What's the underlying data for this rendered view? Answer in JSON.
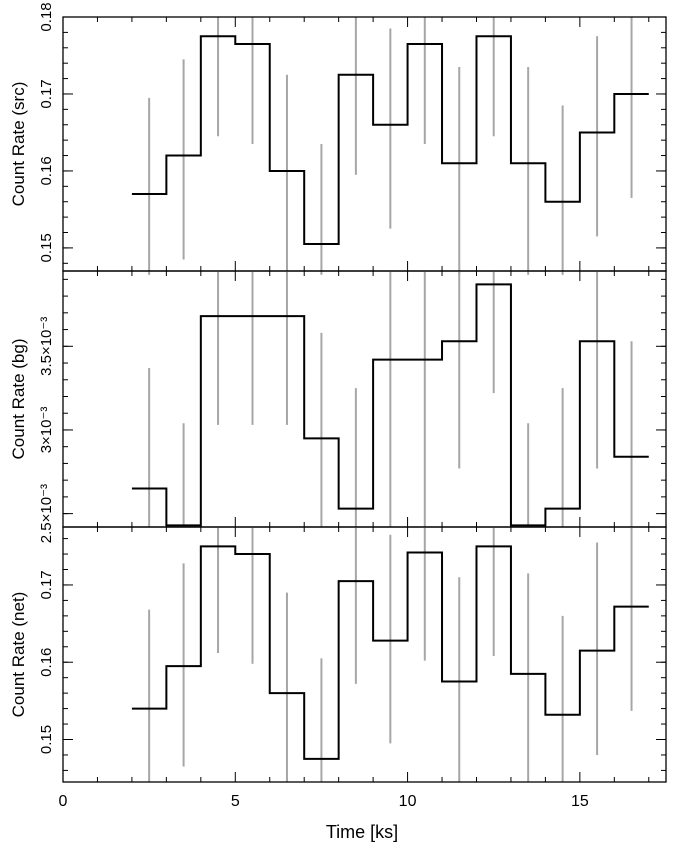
{
  "chart_data": {
    "type": "line",
    "xlabel": "Time [ks]",
    "xlim": [
      0,
      17.5
    ],
    "x_ticks": [
      0,
      5,
      10,
      15
    ],
    "x_tick_labels": [
      "0",
      "5",
      "10",
      "15"
    ],
    "bins": {
      "edges": [
        2,
        3,
        4,
        5,
        6,
        7,
        8,
        9,
        10,
        11,
        12,
        13,
        14,
        15,
        16,
        17
      ],
      "centers": [
        2.5,
        3.5,
        4.5,
        5.5,
        6.5,
        7.5,
        8.5,
        9.5,
        10.5,
        11.5,
        12.5,
        13.5,
        14.5,
        15.5,
        16.5
      ]
    },
    "panels": [
      {
        "name": "src",
        "ylabel": "Count Rate (src)",
        "ylim": [
          0.147,
          0.18
        ],
        "y_ticks": [
          0.15,
          0.16,
          0.17,
          0.18
        ],
        "y_tick_labels": [
          "0.15",
          "0.16",
          "0.17",
          "0.18"
        ],
        "values": [
          0.157,
          0.162,
          0.1775,
          0.1765,
          0.16,
          0.1505,
          0.1725,
          0.166,
          0.1765,
          0.161,
          0.1775,
          0.161,
          0.156,
          0.165,
          0.17
        ],
        "err_lo": [
          0.1465,
          0.1485,
          0.1645,
          0.1635,
          0.1465,
          0.1465,
          0.1595,
          0.1525,
          0.1635,
          0.1465,
          0.1645,
          0.1465,
          0.1465,
          0.1515,
          0.1565
        ],
        "err_hi": [
          0.1695,
          0.1745,
          0.18,
          0.18,
          0.1725,
          0.1635,
          0.18,
          0.1785,
          0.18,
          0.1735,
          0.18,
          0.1735,
          0.1685,
          0.1775,
          0.18
        ]
      },
      {
        "name": "bg",
        "ylabel": "Count Rate (bg)",
        "ylim": [
          0.00242,
          0.00395
        ],
        "y_ticks": [
          0.0025,
          0.003,
          0.0035
        ],
        "y_tick_labels": [
          "2.5×10⁻³",
          "3×10⁻³",
          "3.5×10⁻³"
        ],
        "values": [
          0.00265,
          0.00243,
          0.00368,
          0.00368,
          0.00368,
          0.00295,
          0.00253,
          0.00342,
          0.00342,
          0.00353,
          0.00387,
          0.00243,
          0.00253,
          0.00353,
          0.00284
        ],
        "err_lo": [
          0.00242,
          0.00242,
          0.00303,
          0.00303,
          0.00303,
          0.00242,
          0.00242,
          0.00242,
          0.00242,
          0.00277,
          0.00322,
          0.00242,
          0.00242,
          0.00277,
          0.00242
        ],
        "err_hi": [
          0.00337,
          0.00304,
          0.00395,
          0.00395,
          0.00395,
          0.00358,
          0.00325,
          0.00395,
          0.00395,
          0.00395,
          0.00395,
          0.00304,
          0.00325,
          0.00395,
          0.00353
        ]
      },
      {
        "name": "net",
        "ylabel": "Count Rate (net)",
        "ylim": [
          0.1445,
          0.1775
        ],
        "y_ticks": [
          0.15,
          0.16,
          0.17
        ],
        "y_tick_labels": [
          "0.15",
          "0.16",
          "0.17"
        ],
        "values": [
          0.154,
          0.1595,
          0.175,
          0.174,
          0.156,
          0.1475,
          0.1705,
          0.1628,
          0.1742,
          0.1575,
          0.175,
          0.1585,
          0.1532,
          0.1615,
          0.1672
        ],
        "err_lo": [
          0.1445,
          0.1465,
          0.1612,
          0.1598,
          0.1445,
          0.1445,
          0.1572,
          0.1495,
          0.1602,
          0.1445,
          0.1608,
          0.1445,
          0.1445,
          0.148,
          0.1537
        ],
        "err_hi": [
          0.1668,
          0.1728,
          0.1775,
          0.1775,
          0.169,
          0.1605,
          0.1775,
          0.1765,
          0.1775,
          0.171,
          0.1775,
          0.1715,
          0.166,
          0.1755,
          0.1775
        ]
      }
    ],
    "colors": {
      "histogram": "#000000",
      "errorbar": "#a6a6a6",
      "axis": "#000000"
    },
    "grid": false,
    "legend": "none"
  }
}
